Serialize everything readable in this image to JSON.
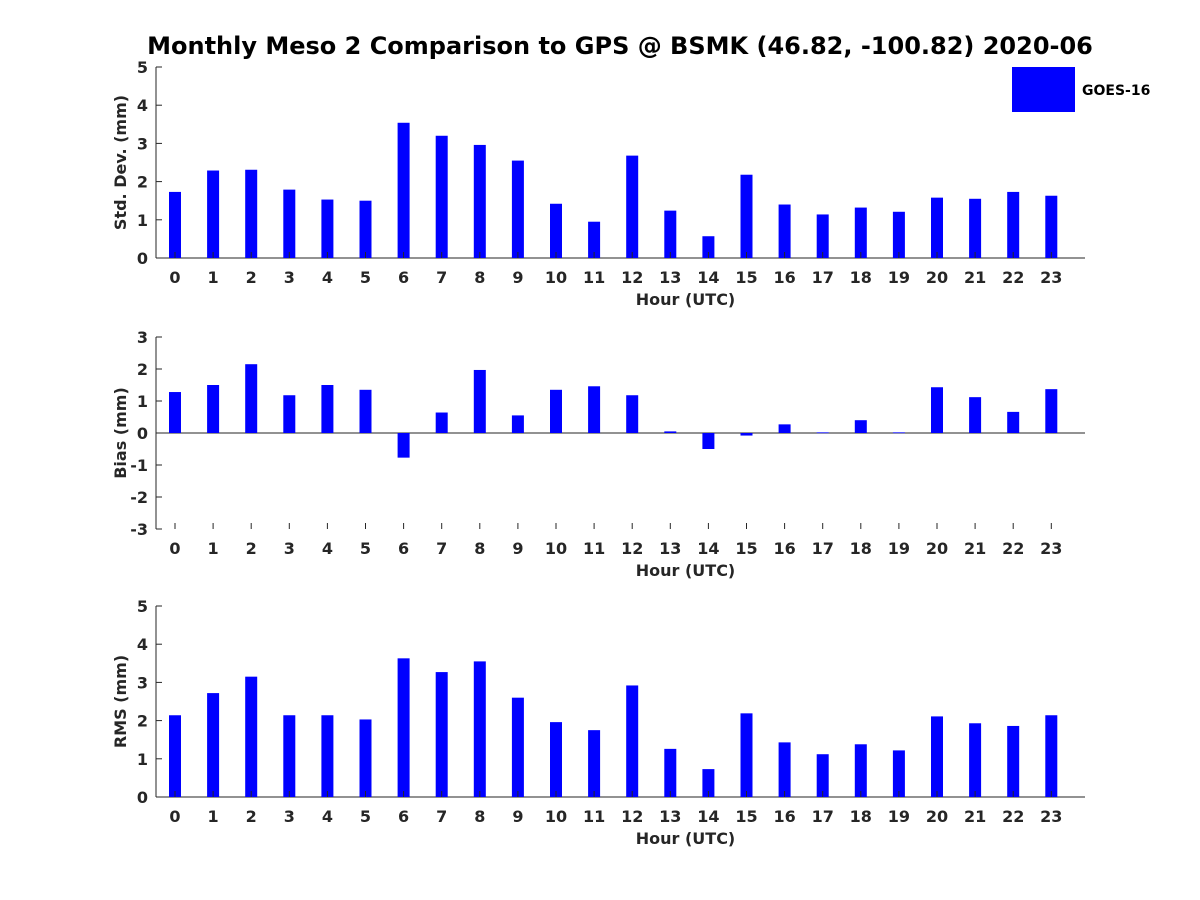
{
  "figure_title": "Monthly Meso 2 Comparison to GPS @ BSMK (46.82, -100.82) 2020-06",
  "legend": {
    "label": "GOES-16",
    "color": "#0000ff"
  },
  "chart_data": [
    {
      "type": "bar",
      "xlabel": "Hour (UTC)",
      "ylabel": "Std. Dev. (mm)",
      "ylim": [
        0,
        5
      ],
      "yticks": [
        0,
        1,
        2,
        3,
        4,
        5
      ],
      "categories": [
        "0",
        "1",
        "2",
        "3",
        "4",
        "5",
        "6",
        "7",
        "8",
        "9",
        "10",
        "11",
        "12",
        "13",
        "14",
        "15",
        "16",
        "17",
        "18",
        "19",
        "20",
        "21",
        "22",
        "23"
      ],
      "series": [
        {
          "name": "GOES-16",
          "values": [
            1.73,
            2.29,
            2.31,
            1.79,
            1.53,
            1.5,
            3.54,
            3.2,
            2.96,
            2.55,
            1.42,
            0.95,
            2.68,
            1.24,
            0.57,
            2.18,
            1.4,
            1.14,
            1.32,
            1.21,
            1.58,
            1.55,
            1.73,
            1.63
          ]
        }
      ],
      "legend": "top-right"
    },
    {
      "type": "bar",
      "xlabel": "Hour (UTC)",
      "ylabel": "Bias (mm)",
      "ylim": [
        -3,
        3
      ],
      "yticks": [
        -3,
        -2,
        -1,
        0,
        1,
        2,
        3
      ],
      "categories": [
        "0",
        "1",
        "2",
        "3",
        "4",
        "5",
        "6",
        "7",
        "8",
        "9",
        "10",
        "11",
        "12",
        "13",
        "14",
        "15",
        "16",
        "17",
        "18",
        "19",
        "20",
        "21",
        "22",
        "23"
      ],
      "series": [
        {
          "name": "GOES-16",
          "values": [
            1.28,
            1.5,
            2.15,
            1.18,
            1.5,
            1.35,
            -0.77,
            0.64,
            1.97,
            0.55,
            1.35,
            1.46,
            1.18,
            0.05,
            -0.5,
            -0.08,
            0.27,
            0.02,
            0.4,
            0.02,
            1.43,
            1.12,
            0.66,
            1.37
          ]
        }
      ]
    },
    {
      "type": "bar",
      "xlabel": "Hour (UTC)",
      "ylabel": "RMS (mm)",
      "ylim": [
        0,
        5
      ],
      "yticks": [
        0,
        1,
        2,
        3,
        4,
        5
      ],
      "categories": [
        "0",
        "1",
        "2",
        "3",
        "4",
        "5",
        "6",
        "7",
        "8",
        "9",
        "10",
        "11",
        "12",
        "13",
        "14",
        "15",
        "16",
        "17",
        "18",
        "19",
        "20",
        "21",
        "22",
        "23"
      ],
      "series": [
        {
          "name": "GOES-16",
          "values": [
            2.14,
            2.72,
            3.15,
            2.14,
            2.14,
            2.03,
            3.63,
            3.27,
            3.55,
            2.6,
            1.96,
            1.75,
            2.92,
            1.26,
            0.73,
            2.19,
            1.43,
            1.12,
            1.38,
            1.22,
            2.11,
            1.93,
            1.86,
            2.14
          ]
        }
      ]
    }
  ]
}
